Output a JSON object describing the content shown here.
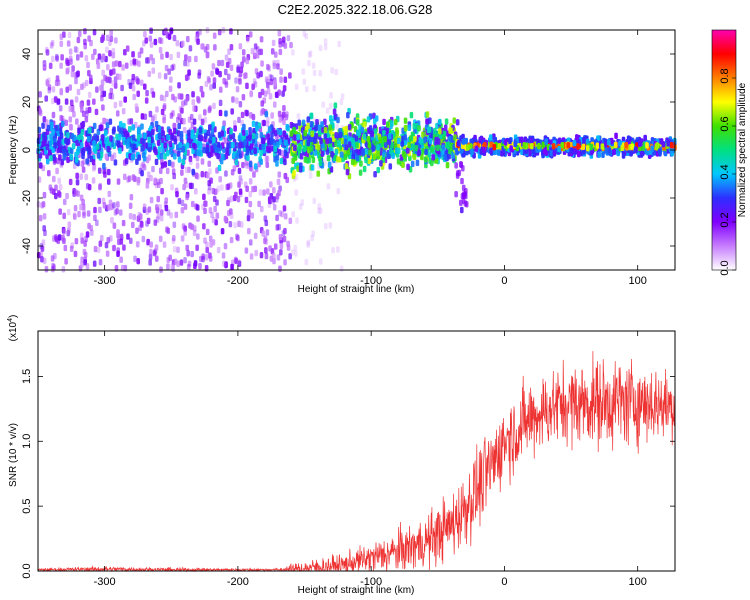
{
  "figure": {
    "title": "C2E2.2025.322.18.06.G28"
  },
  "chart_data": [
    {
      "type": "heatmap",
      "xlabel": "Height of straight line (km)",
      "ylabel": "Frequency (Hz)",
      "xlim": [
        -350,
        128
      ],
      "ylim": [
        -50,
        50
      ],
      "xticks": [
        "-300",
        "-200",
        "-100",
        "0",
        "100"
      ],
      "yticks": [
        "-40",
        "-20",
        "0",
        "20",
        "40"
      ],
      "colorbar": {
        "label": "Normalized spectral amplitude",
        "range": [
          0,
          1
        ],
        "ticks": [
          "0.0",
          "0.2",
          "0.4",
          "0.6",
          "0.8"
        ],
        "colors": [
          "#ffffff",
          "#c77dff",
          "#8000ff",
          "#2e2eff",
          "#00c8ff",
          "#00e080",
          "#40e000",
          "#ffff00",
          "#ff8000",
          "#ff0000",
          "#ff00b0"
        ]
      },
      "features": {
        "scatter_region_x": [
          -350,
          -160
        ],
        "band_center_hz": 3,
        "band_region_x": [
          -160,
          -35
        ],
        "band_peak_amplitude": 0.5,
        "line_region_x": [
          -35,
          128
        ],
        "line_center_hz": 1.5,
        "line_peak_amplitude": 0.9,
        "low_freq_tail": {
          "x": -32,
          "y": -25
        }
      }
    },
    {
      "type": "line",
      "xlabel": "Height of straight line (km)",
      "ylabel": "SNR (10 * v/v)",
      "scale_note": "(x10",
      "scale_exp": "4",
      "xlim": [
        -350,
        128
      ],
      "ylim": [
        0,
        1.85
      ],
      "xticks": [
        "-300",
        "-200",
        "-100",
        "0",
        "100"
      ],
      "yticks": [
        "0.0",
        "0.5",
        "1.0",
        "1.5"
      ],
      "color": "#ee3333",
      "envelope": {
        "x": [
          -350,
          -300,
          -250,
          -200,
          -170,
          -150,
          -120,
          -100,
          -80,
          -60,
          -40,
          -25,
          -10,
          0,
          20,
          40,
          60,
          80,
          100,
          128
        ],
        "mean": [
          0.01,
          0.015,
          0.01,
          0.01,
          0.01,
          0.02,
          0.05,
          0.1,
          0.15,
          0.22,
          0.35,
          0.55,
          0.8,
          1.0,
          1.18,
          1.28,
          1.3,
          1.3,
          1.3,
          1.27
        ],
        "spread": [
          0.01,
          0.02,
          0.015,
          0.01,
          0.01,
          0.06,
          0.08,
          0.12,
          0.16,
          0.2,
          0.25,
          0.3,
          0.3,
          0.3,
          0.3,
          0.3,
          0.32,
          0.35,
          0.32,
          0.25
        ]
      }
    }
  ]
}
